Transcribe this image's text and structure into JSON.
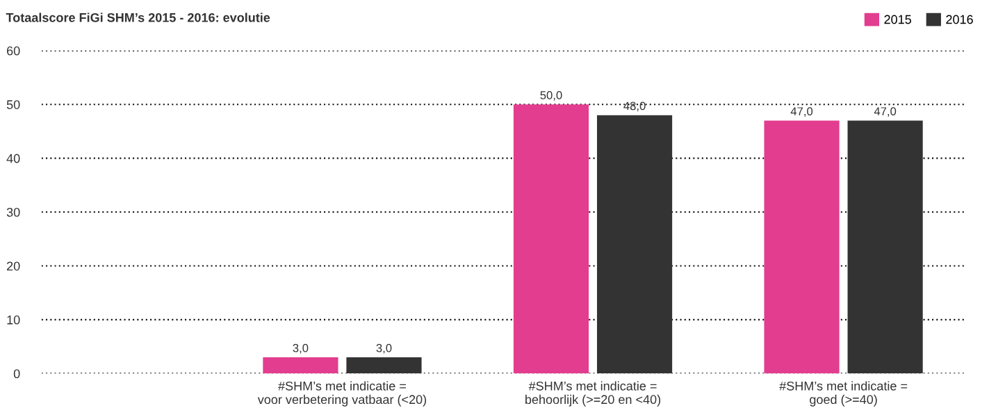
{
  "chart_data": {
    "type": "bar",
    "title": "Totaalscore FiGi SHM’s 2015 - 2016: evolutie",
    "categories": [
      null,
      "#SHM’s met indicatie =\nvoor verbetering vatbaar (<20)",
      "#SHM’s met indicatie =\nbehoorlijk (>=20 en <40)",
      "#SHM’s met indicatie =\ngoed (>=40)"
    ],
    "series": [
      {
        "name": "2015",
        "color": "#e23d8f",
        "values": [
          null,
          3,
          50,
          47
        ],
        "value_labels": [
          null,
          "3,0",
          "50,0",
          "47,0"
        ]
      },
      {
        "name": "2016",
        "color": "#333333",
        "values": [
          null,
          3,
          48,
          47
        ],
        "value_labels": [
          null,
          "3,0",
          "48,0",
          "47,0"
        ]
      }
    ],
    "ylim": [
      0,
      60
    ],
    "yticks": [
      0,
      10,
      20,
      30,
      40,
      50,
      60
    ],
    "grid": "y",
    "legend": "top right"
  }
}
